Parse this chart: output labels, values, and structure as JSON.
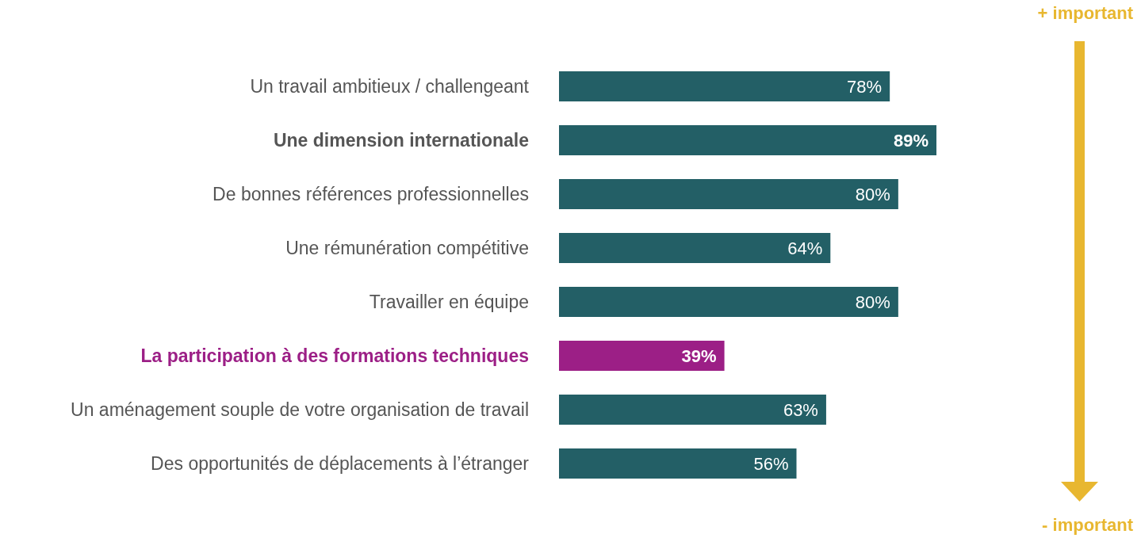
{
  "chart_data": {
    "type": "bar",
    "orientation": "horizontal",
    "categories": [
      "Un travail ambitieux / challengeant",
      "Une dimension internationale",
      "De bonnes références professionnelles",
      "Une rémunération compétitive",
      "Travailler en équipe",
      "La participation à des formations techniques",
      "Un aménagement souple de votre organisation de travail",
      "Des opportunités de déplacements à l’étranger"
    ],
    "values": [
      78,
      89,
      80,
      64,
      80,
      39,
      63,
      56
    ],
    "value_labels": [
      "78%",
      "89%",
      "80%",
      "64%",
      "80%",
      "39%",
      "63%",
      "56%"
    ],
    "colors": [
      "#235f66",
      "#235f66",
      "#235f66",
      "#235f66",
      "#235f66",
      "#9c1f86",
      "#235f66",
      "#235f66"
    ],
    "annotations": [
      "+ important",
      "- important"
    ]
  }
}
